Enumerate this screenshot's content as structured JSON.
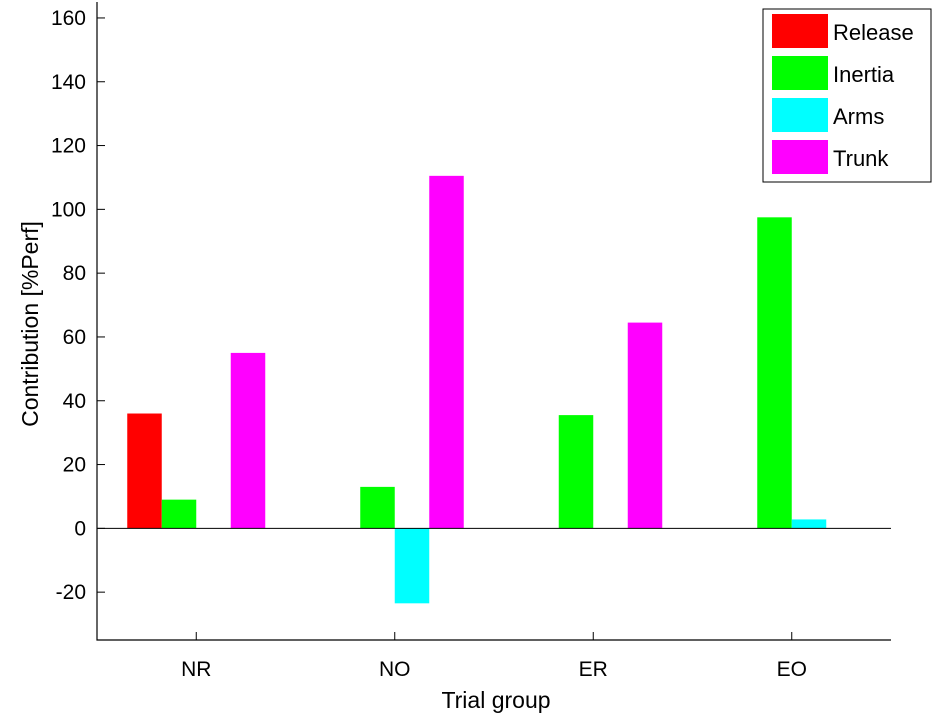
{
  "chart_data": {
    "type": "bar",
    "title": "",
    "xlabel": "Trial group",
    "ylabel": "Contribution [%Perf]",
    "categories": [
      "NR",
      "NO",
      "ER",
      "EO"
    ],
    "ylim": [
      -35,
      165
    ],
    "yticks": [
      -20,
      0,
      20,
      40,
      60,
      80,
      100,
      120,
      140,
      160
    ],
    "grid": false,
    "legend_position": "top-right",
    "series": [
      {
        "name": "Release",
        "color": "#ff0000",
        "values": [
          36,
          null,
          null,
          null
        ]
      },
      {
        "name": "Inertia",
        "color": "#00ff00",
        "values": [
          9,
          13,
          35.5,
          97.5
        ]
      },
      {
        "name": "Arms",
        "color": "#00ffff",
        "values": [
          null,
          -23.5,
          null,
          2.8
        ]
      },
      {
        "name": "Trunk",
        "color": "#ff00ff",
        "values": [
          55,
          110.5,
          64.5,
          null
        ]
      }
    ]
  }
}
